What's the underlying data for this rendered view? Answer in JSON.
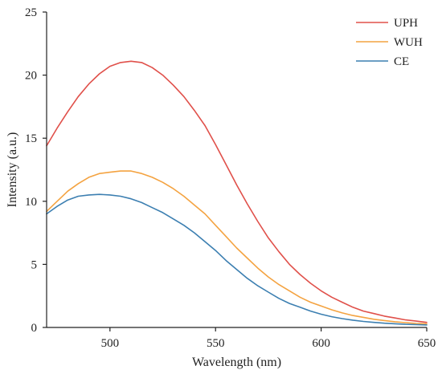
{
  "chart_data": {
    "type": "line",
    "title": "",
    "xlabel": "Wavelength (nm)",
    "ylabel": "Intensity (a.u.)",
    "xlim": [
      470,
      650
    ],
    "ylim": [
      0,
      25
    ],
    "x_ticks": [
      500,
      550,
      600,
      650
    ],
    "y_ticks": [
      0,
      5,
      10,
      15,
      20,
      25
    ],
    "grid": false,
    "legend_position": "top-right",
    "series": [
      {
        "name": "UPH",
        "color": "#e0504a",
        "x": [
          470,
          475,
          480,
          485,
          490,
          495,
          500,
          505,
          510,
          515,
          520,
          525,
          530,
          535,
          540,
          545,
          550,
          555,
          560,
          565,
          570,
          575,
          580,
          585,
          590,
          595,
          600,
          605,
          610,
          615,
          620,
          625,
          630,
          635,
          640,
          645,
          650
        ],
        "y": [
          14.4,
          15.8,
          17.1,
          18.3,
          19.3,
          20.1,
          20.7,
          21.0,
          21.1,
          21.0,
          20.6,
          20.0,
          19.2,
          18.3,
          17.2,
          16.0,
          14.5,
          12.9,
          11.3,
          9.8,
          8.4,
          7.1,
          6.0,
          5.0,
          4.2,
          3.5,
          2.9,
          2.4,
          2.0,
          1.6,
          1.3,
          1.1,
          0.9,
          0.75,
          0.6,
          0.5,
          0.4
        ]
      },
      {
        "name": "WUH",
        "color": "#f4a341",
        "x": [
          470,
          475,
          480,
          485,
          490,
          495,
          500,
          505,
          510,
          515,
          520,
          525,
          530,
          535,
          540,
          545,
          550,
          555,
          560,
          565,
          570,
          575,
          580,
          585,
          590,
          595,
          600,
          605,
          610,
          615,
          620,
          625,
          630,
          635,
          640,
          645,
          650
        ],
        "y": [
          9.2,
          10.0,
          10.8,
          11.4,
          11.9,
          12.2,
          12.3,
          12.4,
          12.4,
          12.2,
          11.9,
          11.5,
          11.0,
          10.4,
          9.7,
          9.0,
          8.1,
          7.2,
          6.3,
          5.5,
          4.7,
          4.0,
          3.4,
          2.9,
          2.4,
          2.0,
          1.7,
          1.4,
          1.15,
          0.95,
          0.8,
          0.65,
          0.55,
          0.45,
          0.38,
          0.32,
          0.28
        ]
      },
      {
        "name": "CE",
        "color": "#3c7fb1",
        "x": [
          470,
          475,
          480,
          485,
          490,
          495,
          500,
          505,
          510,
          515,
          520,
          525,
          530,
          535,
          540,
          545,
          550,
          555,
          560,
          565,
          570,
          575,
          580,
          585,
          590,
          595,
          600,
          605,
          610,
          615,
          620,
          625,
          630,
          635,
          640,
          645,
          650
        ],
        "y": [
          9.0,
          9.6,
          10.1,
          10.4,
          10.5,
          10.55,
          10.5,
          10.4,
          10.2,
          9.9,
          9.5,
          9.1,
          8.6,
          8.1,
          7.5,
          6.8,
          6.1,
          5.3,
          4.6,
          3.9,
          3.3,
          2.8,
          2.3,
          1.9,
          1.6,
          1.3,
          1.05,
          0.85,
          0.7,
          0.58,
          0.48,
          0.4,
          0.34,
          0.29,
          0.25,
          0.22,
          0.2
        ]
      }
    ]
  }
}
